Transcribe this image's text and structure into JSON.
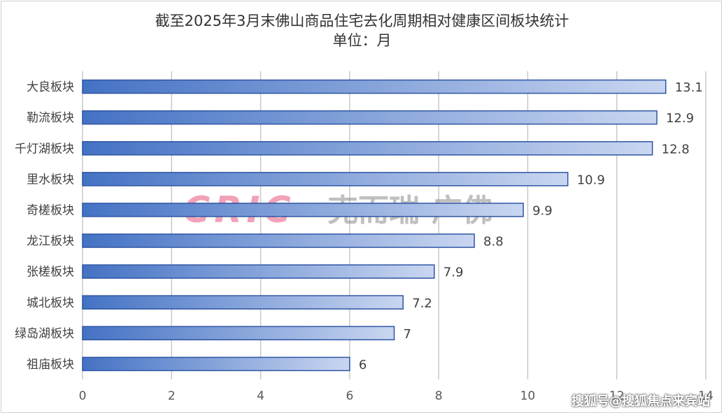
{
  "chart_data": {
    "type": "bar",
    "orientation": "horizontal",
    "title": "截至2025年3月末佛山商品住宅去化周期相对健康区间板块统计",
    "subtitle": "单位：月",
    "categories": [
      "大良板块",
      "勒流板块",
      "千灯湖板块",
      "里水板块",
      "奇槎板块",
      "龙江板块",
      "张槎板块",
      "城北板块",
      "绿岛湖板块",
      "祖庙板块"
    ],
    "values": [
      13.1,
      12.9,
      12.8,
      10.9,
      9.9,
      8.8,
      7.9,
      7.2,
      7,
      6
    ],
    "value_labels": [
      "13.1",
      "12.9",
      "12.8",
      "10.9",
      "9.9",
      "8.8",
      "7.9",
      "7.2",
      "7",
      "6"
    ],
    "xlim": [
      0,
      14
    ],
    "xticks": [
      "0",
      "2",
      "4",
      "6",
      "8",
      "10",
      "12",
      "14"
    ],
    "grid": true,
    "legend": "none",
    "colors": {
      "bar_start": "#4472c4",
      "bar_end": "#c9d6f0",
      "bar_border": "#2f55a4",
      "grid": "#c8c8c8"
    }
  },
  "watermark": {
    "logo_text": "CRIC",
    "brand_text": "克而瑞·广佛"
  },
  "footer_watermark": "搜狐号@搜狐焦点来宾站"
}
